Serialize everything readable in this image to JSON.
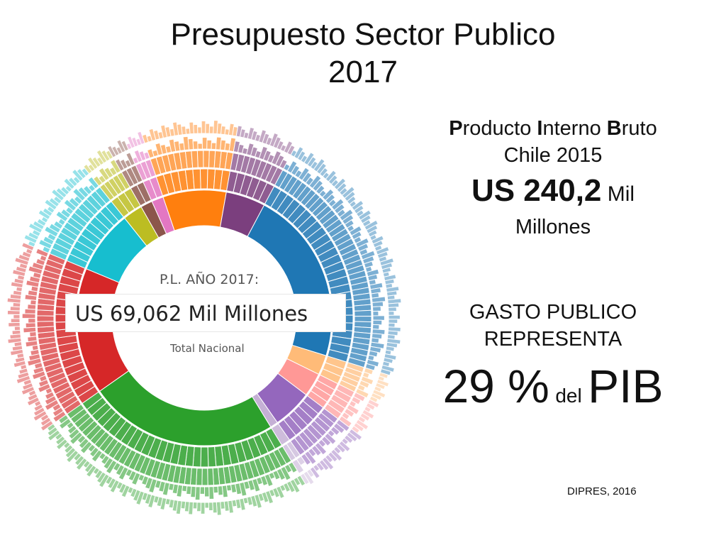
{
  "title": {
    "line1": "Presupuesto Sector Publico",
    "line2": "2017"
  },
  "pib": {
    "line1_parts": [
      "P",
      "roducto ",
      "I",
      "nterno ",
      "B",
      "ruto"
    ],
    "line2": "Chile 2015",
    "value_prefix": "US 240,2",
    "value_unit": " Mil",
    "value_suffix": "Millones"
  },
  "gasto": {
    "line1": "GASTO PUBLICO",
    "line2": "REPRESENTA",
    "pct": "29 %",
    "del": "del",
    "pib": "PIB"
  },
  "source": "DIPRES, 2016",
  "chart_data": {
    "type": "sunburst",
    "center": {
      "top": "P.L. AÑO 2017:",
      "main": "US   69,062 Mil Millones",
      "bottom": "Total Nacional"
    },
    "palette": {
      "blue": "#1f77b4",
      "orange": "#ff7f0e",
      "green": "#2ca02c",
      "red": "#d62728",
      "purple": "#9467bd",
      "pink": "#ff9896",
      "lightorange": "#ffbb78",
      "cyan": "#17becf",
      "olive": "#bcbd22",
      "darkpurple": "#7b3f7e",
      "magenta": "#e377c2"
    },
    "sectors": [
      {
        "name": "blue",
        "share": 22.0,
        "color": "#1f77b4"
      },
      {
        "name": "lightorange",
        "share": 2.5,
        "color": "#ffbb78"
      },
      {
        "name": "pink",
        "share": 3.0,
        "color": "#ff9896"
      },
      {
        "name": "purple",
        "share": 5.0,
        "color": "#9467bd"
      },
      {
        "name": "gap1",
        "share": 1.0,
        "color": "#c5b0d5"
      },
      {
        "name": "green",
        "share": 24.0,
        "color": "#2ca02c"
      },
      {
        "name": "red",
        "share": 16.0,
        "color": "#d62728"
      },
      {
        "name": "cyan",
        "share": 8.0,
        "color": "#17becf"
      },
      {
        "name": "olive",
        "share": 2.5,
        "color": "#bcbd22"
      },
      {
        "name": "darkpurple",
        "share": 1.5,
        "color": "#8c564b"
      },
      {
        "name": "magenta",
        "share": 1.5,
        "color": "#e377c2"
      },
      {
        "name": "orange",
        "share": 8.0,
        "color": "#ff7f0e"
      },
      {
        "name": "plum",
        "share": 5.0,
        "color": "#7b3f7e"
      }
    ]
  }
}
